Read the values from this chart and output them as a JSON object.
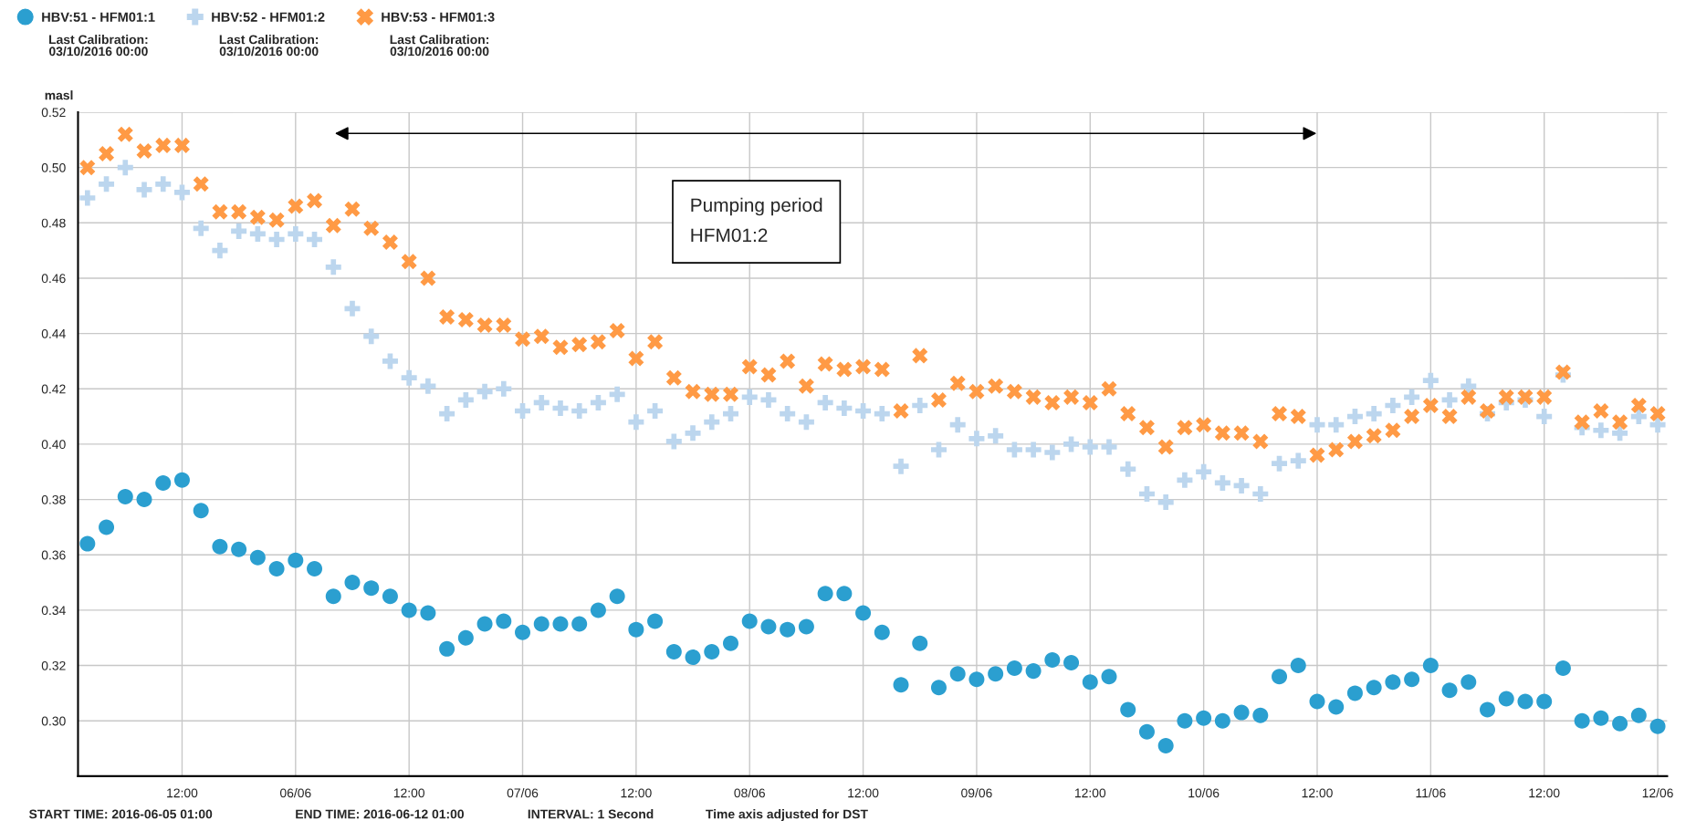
{
  "chart_data": {
    "type": "scatter",
    "ylabel": "masl",
    "x": [
      "2016-06-05T02:00",
      "2016-06-05T04:00",
      "2016-06-05T06:00",
      "2016-06-05T08:00",
      "2016-06-05T10:00",
      "2016-06-05T12:00",
      "2016-06-05T14:00",
      "2016-06-05T16:00",
      "2016-06-05T18:00",
      "2016-06-05T20:00",
      "2016-06-05T22:00",
      "2016-06-06T00:00",
      "2016-06-06T02:00",
      "2016-06-06T04:00",
      "2016-06-06T06:00",
      "2016-06-06T08:00",
      "2016-06-06T10:00",
      "2016-06-06T12:00",
      "2016-06-06T14:00",
      "2016-06-06T16:00",
      "2016-06-06T18:00",
      "2016-06-06T20:00",
      "2016-06-06T22:00",
      "2016-06-07T00:00",
      "2016-06-07T02:00",
      "2016-06-07T04:00",
      "2016-06-07T06:00",
      "2016-06-07T08:00",
      "2016-06-07T10:00",
      "2016-06-07T12:00",
      "2016-06-07T14:00",
      "2016-06-07T16:00",
      "2016-06-07T18:00",
      "2016-06-07T20:00",
      "2016-06-07T22:00",
      "2016-06-08T00:00",
      "2016-06-08T02:00",
      "2016-06-08T04:00",
      "2016-06-08T06:00",
      "2016-06-08T08:00",
      "2016-06-08T10:00",
      "2016-06-08T12:00",
      "2016-06-08T14:00",
      "2016-06-08T16:00",
      "2016-06-08T18:00",
      "2016-06-08T20:00",
      "2016-06-08T22:00",
      "2016-06-09T00:00",
      "2016-06-09T02:00",
      "2016-06-09T04:00",
      "2016-06-09T06:00",
      "2016-06-09T08:00",
      "2016-06-09T10:00",
      "2016-06-09T12:00",
      "2016-06-09T14:00",
      "2016-06-09T16:00",
      "2016-06-09T18:00",
      "2016-06-09T20:00",
      "2016-06-09T22:00",
      "2016-06-10T00:00",
      "2016-06-10T02:00",
      "2016-06-10T04:00",
      "2016-06-10T06:00",
      "2016-06-10T08:00",
      "2016-06-10T10:00",
      "2016-06-10T12:00",
      "2016-06-10T14:00",
      "2016-06-10T16:00",
      "2016-06-10T18:00",
      "2016-06-10T20:00",
      "2016-06-10T22:00",
      "2016-06-11T00:00",
      "2016-06-11T02:00",
      "2016-06-11T04:00",
      "2016-06-11T06:00",
      "2016-06-11T08:00",
      "2016-06-11T10:00",
      "2016-06-11T12:00",
      "2016-06-11T14:00",
      "2016-06-11T16:00",
      "2016-06-11T18:00",
      "2016-06-11T20:00",
      "2016-06-11T22:00",
      "2016-06-12T00:00"
    ],
    "series": [
      {
        "name": "HBV:51 - HFM01:1",
        "color": "#2b9fd0",
        "marker": "circle",
        "values": [
          0.364,
          0.37,
          0.381,
          0.38,
          0.386,
          0.387,
          0.376,
          0.363,
          0.362,
          0.359,
          0.355,
          0.358,
          0.355,
          0.345,
          0.35,
          0.348,
          0.345,
          0.34,
          0.339,
          0.326,
          0.33,
          0.335,
          0.336,
          0.332,
          0.335,
          0.335,
          0.335,
          0.34,
          0.345,
          0.333,
          0.336,
          0.325,
          0.323,
          0.325,
          0.328,
          0.336,
          0.334,
          0.333,
          0.334,
          0.346,
          0.346,
          0.339,
          0.332,
          0.313,
          0.328,
          0.312,
          0.317,
          0.315,
          0.317,
          0.319,
          0.318,
          0.322,
          0.321,
          0.314,
          0.316,
          0.304,
          0.296,
          0.291,
          0.3,
          0.301,
          0.3,
          0.303,
          0.302,
          0.316,
          0.32,
          0.307,
          0.305,
          0.31,
          0.312,
          0.314,
          0.315,
          0.32,
          0.311,
          0.314,
          0.304,
          0.308,
          0.307,
          0.307,
          0.319,
          0.3,
          0.301,
          0.299,
          0.302,
          0.298
        ]
      },
      {
        "name": "HBV:52 - HFM01:2",
        "color": "#bcd6ee",
        "marker": "plus",
        "values": [
          0.489,
          0.494,
          0.5,
          0.492,
          0.494,
          0.491,
          0.478,
          0.47,
          0.477,
          0.476,
          0.474,
          0.476,
          0.474,
          0.464,
          0.449,
          0.439,
          0.43,
          0.424,
          0.421,
          0.411,
          0.416,
          0.419,
          0.42,
          0.412,
          0.415,
          0.413,
          0.412,
          0.415,
          0.418,
          0.408,
          0.412,
          0.401,
          0.404,
          0.408,
          0.411,
          0.417,
          0.416,
          0.411,
          0.408,
          0.415,
          0.413,
          0.412,
          0.411,
          0.392,
          0.414,
          0.398,
          0.407,
          0.402,
          0.403,
          0.398,
          0.398,
          0.397,
          0.4,
          0.399,
          0.399,
          0.391,
          0.382,
          0.379,
          0.387,
          0.39,
          0.386,
          0.385,
          0.382,
          0.393,
          0.394,
          0.407,
          0.407,
          0.41,
          0.411,
          0.414,
          0.417,
          0.423,
          0.416,
          0.421,
          0.411,
          0.415,
          0.416,
          0.41,
          0.425,
          0.406,
          0.405,
          0.404,
          0.41,
          0.407
        ]
      },
      {
        "name": "HBV:53 - HFM01:3",
        "color": "#ff9a45",
        "marker": "cross",
        "values": [
          0.5,
          0.505,
          0.512,
          0.506,
          0.508,
          0.508,
          0.494,
          0.484,
          0.484,
          0.482,
          0.481,
          0.486,
          0.488,
          0.479,
          0.485,
          0.478,
          0.473,
          0.466,
          0.46,
          0.446,
          0.445,
          0.443,
          0.443,
          0.438,
          0.439,
          0.435,
          0.436,
          0.437,
          0.441,
          0.431,
          0.437,
          0.424,
          0.419,
          0.418,
          0.418,
          0.428,
          0.425,
          0.43,
          0.421,
          0.429,
          0.427,
          0.428,
          0.427,
          0.412,
          0.432,
          0.416,
          0.422,
          0.419,
          0.421,
          0.419,
          0.417,
          0.415,
          0.417,
          0.415,
          0.42,
          0.411,
          0.406,
          0.399,
          0.406,
          0.407,
          0.404,
          0.404,
          0.401,
          0.411,
          0.41,
          0.396,
          0.398,
          0.401,
          0.403,
          0.405,
          0.41,
          0.414,
          0.41,
          0.417,
          0.412,
          0.417,
          0.417,
          0.417,
          0.426,
          0.408,
          0.412,
          0.408,
          0.414,
          0.411
        ]
      }
    ],
    "xlim": [
      "2016-06-05T01:00",
      "2016-06-12T01:00"
    ],
    "xticks": [
      {
        "value": "2016-06-05T12:00",
        "label": "12:00"
      },
      {
        "value": "2016-06-06T00:00",
        "label": "06/06"
      },
      {
        "value": "2016-06-06T12:00",
        "label": "12:00"
      },
      {
        "value": "2016-06-07T00:00",
        "label": "07/06"
      },
      {
        "value": "2016-06-07T12:00",
        "label": "12:00"
      },
      {
        "value": "2016-06-08T00:00",
        "label": "08/06"
      },
      {
        "value": "2016-06-08T12:00",
        "label": "12:00"
      },
      {
        "value": "2016-06-09T00:00",
        "label": "09/06"
      },
      {
        "value": "2016-06-09T12:00",
        "label": "12:00"
      },
      {
        "value": "2016-06-10T00:00",
        "label": "10/06"
      },
      {
        "value": "2016-06-10T12:00",
        "label": "12:00"
      },
      {
        "value": "2016-06-11T00:00",
        "label": "11/06"
      },
      {
        "value": "2016-06-11T12:00",
        "label": "12:00"
      },
      {
        "value": "2016-06-12T00:00",
        "label": "12/06"
      }
    ],
    "ylim": [
      0.28,
      0.52
    ],
    "yticks": [
      {
        "value": 0.3,
        "label": "0.30"
      },
      {
        "value": 0.32,
        "label": "0.32"
      },
      {
        "value": 0.34,
        "label": "0.34"
      },
      {
        "value": 0.36,
        "label": "0.36"
      },
      {
        "value": 0.38,
        "label": "0.38"
      },
      {
        "value": 0.4,
        "label": "0.40"
      },
      {
        "value": 0.42,
        "label": "0.42"
      },
      {
        "value": 0.44,
        "label": "0.44"
      },
      {
        "value": 0.46,
        "label": "0.46"
      },
      {
        "value": 0.48,
        "label": "0.48"
      },
      {
        "value": 0.5,
        "label": "0.50"
      },
      {
        "value": 0.52,
        "label": "0.52"
      }
    ],
    "annotations": [
      "Pumping period\nHFM01:2",
      "Last Calibration:\n03/10/2016 00:00",
      "Last Calibration:\n03/10/2016 00:00",
      "Last Calibration:\n03/10/2016 00:00",
      "START TIME: 2016-06-05 01:00",
      "END TIME: 2016-06-12 01:00",
      "INTERVAL: 1 Second",
      "Time axis adjusted for DST"
    ],
    "grid": true,
    "legend": "top left"
  }
}
